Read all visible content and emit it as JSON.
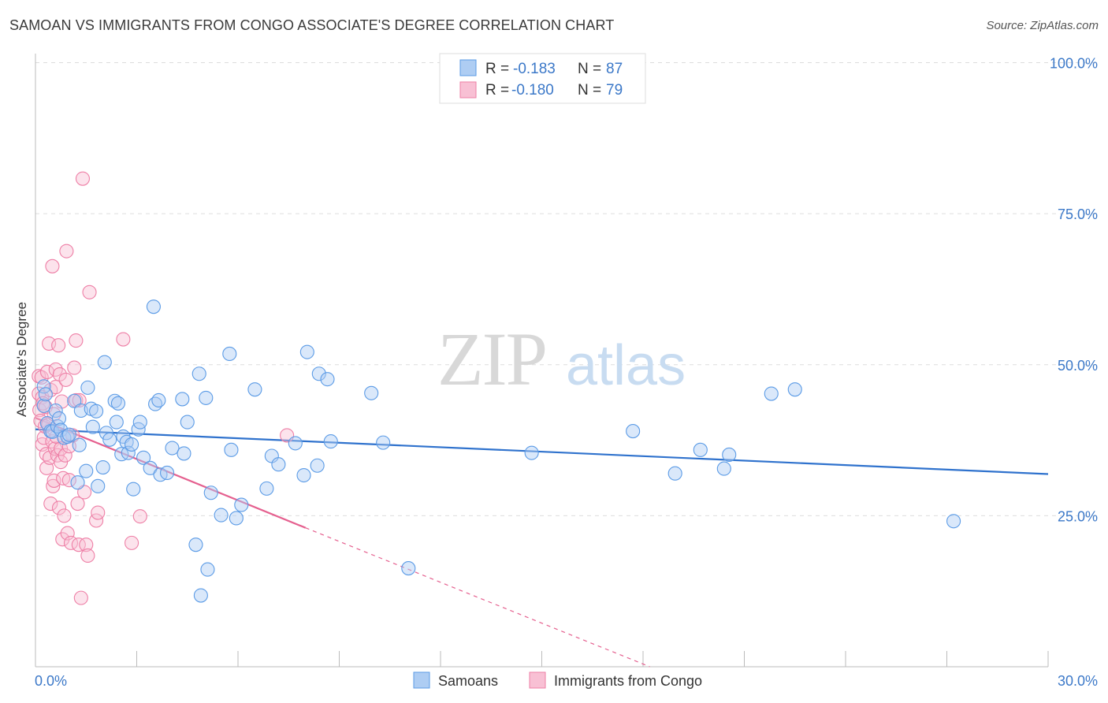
{
  "header": {
    "title": "SAMOAN VS IMMIGRANTS FROM CONGO ASSOCIATE'S DEGREE CORRELATION CHART",
    "source": "Source: ZipAtlas.com"
  },
  "colors": {
    "samoans": "#5b9be6",
    "samoans_fill": "#aecdf3",
    "congo": "#ee7fa6",
    "congo_fill": "#f8c0d4",
    "samoans_line": "#2f72cd",
    "congo_line": "#e5608f",
    "grid": "#dddddd",
    "axis_text": "#3b78c8"
  },
  "watermark": {
    "zip": "ZIP",
    "atlas": "atlas"
  },
  "legend": {
    "r_label": "R =",
    "n_label": "N =",
    "rows": [
      {
        "r": "-0.183",
        "n": "87"
      },
      {
        "r": "-0.180",
        "n": "79"
      }
    ]
  },
  "chart_data": {
    "type": "scatter",
    "title": "SAMOAN VS IMMIGRANTS FROM CONGO ASSOCIATE'S DEGREE CORRELATION CHART",
    "xlabel": "",
    "ylabel": "Associate's Degree",
    "xlim": [
      0,
      30
    ],
    "ylim": [
      0,
      102
    ],
    "x_tick_labels": [
      "0.0%",
      "30.0%"
    ],
    "y_ticks": [
      25,
      50,
      75,
      100
    ],
    "y_tick_labels": [
      "25.0%",
      "50.0%",
      "75.0%",
      "100.0%"
    ],
    "grid": true,
    "legend_position": "top-center",
    "series": [
      {
        "name": "Samoans",
        "r": -0.183,
        "n": 87,
        "trend": {
          "x": [
            0,
            30
          ],
          "y": [
            39.3,
            31.9
          ]
        },
        "points": [
          [
            0.25,
            46.4
          ],
          [
            0.25,
            43.2
          ],
          [
            0.3,
            45.1
          ],
          [
            0.35,
            40.3
          ],
          [
            0.45,
            39.0
          ],
          [
            0.5,
            38.9
          ],
          [
            0.6,
            42.4
          ],
          [
            0.65,
            39.8
          ],
          [
            0.7,
            41.1
          ],
          [
            0.75,
            39.2
          ],
          [
            0.85,
            37.9
          ],
          [
            0.95,
            38.1
          ],
          [
            1.0,
            38.4
          ],
          [
            1.15,
            44.0
          ],
          [
            1.25,
            30.5
          ],
          [
            1.3,
            36.7
          ],
          [
            1.35,
            42.4
          ],
          [
            1.5,
            32.4
          ],
          [
            1.55,
            46.2
          ],
          [
            1.65,
            42.7
          ],
          [
            1.7,
            39.7
          ],
          [
            1.8,
            42.3
          ],
          [
            1.85,
            29.9
          ],
          [
            2.0,
            33.0
          ],
          [
            2.05,
            50.4
          ],
          [
            2.1,
            38.7
          ],
          [
            2.2,
            37.6
          ],
          [
            2.35,
            44.0
          ],
          [
            2.4,
            40.5
          ],
          [
            2.45,
            43.6
          ],
          [
            2.55,
            35.2
          ],
          [
            2.6,
            38.1
          ],
          [
            2.7,
            37.2
          ],
          [
            2.75,
            35.4
          ],
          [
            2.85,
            36.8
          ],
          [
            2.9,
            29.4
          ],
          [
            3.05,
            39.3
          ],
          [
            3.1,
            40.5
          ],
          [
            3.2,
            34.6
          ],
          [
            3.4,
            32.9
          ],
          [
            3.5,
            59.6
          ],
          [
            3.55,
            43.5
          ],
          [
            3.65,
            44.1
          ],
          [
            3.7,
            31.8
          ],
          [
            3.9,
            32.1
          ],
          [
            4.05,
            36.2
          ],
          [
            4.35,
            44.3
          ],
          [
            4.4,
            35.3
          ],
          [
            4.5,
            40.5
          ],
          [
            4.75,
            20.2
          ],
          [
            4.85,
            48.5
          ],
          [
            4.9,
            11.8
          ],
          [
            5.05,
            44.5
          ],
          [
            5.1,
            16.1
          ],
          [
            5.2,
            28.8
          ],
          [
            5.5,
            25.1
          ],
          [
            5.75,
            51.8
          ],
          [
            5.8,
            35.9
          ],
          [
            5.95,
            24.6
          ],
          [
            6.1,
            26.8
          ],
          [
            6.5,
            45.9
          ],
          [
            6.85,
            29.5
          ],
          [
            7.0,
            34.9
          ],
          [
            7.2,
            33.5
          ],
          [
            7.7,
            37.0
          ],
          [
            7.95,
            31.7
          ],
          [
            8.05,
            52.1
          ],
          [
            8.35,
            33.3
          ],
          [
            8.4,
            48.5
          ],
          [
            8.65,
            47.6
          ],
          [
            8.75,
            37.3
          ],
          [
            9.95,
            45.3
          ],
          [
            10.3,
            37.1
          ],
          [
            11.05,
            16.3
          ],
          [
            14.7,
            35.4
          ],
          [
            17.7,
            39.0
          ],
          [
            18.95,
            32.0
          ],
          [
            19.7,
            35.9
          ],
          [
            20.4,
            32.8
          ],
          [
            20.55,
            35.1
          ],
          [
            21.8,
            45.2
          ],
          [
            22.5,
            45.9
          ],
          [
            27.2,
            24.1
          ]
        ]
      },
      {
        "name": "Immigrants from Congo",
        "r": -0.18,
        "n": 79,
        "trend": {
          "x": [
            0,
            8
          ],
          "y": [
            41.2,
            23.0
          ]
        },
        "trend_extension": {
          "x": [
            8,
            18.2
          ],
          "y": [
            23.0,
            0.0
          ]
        },
        "points": [
          [
            0.1,
            48.1
          ],
          [
            0.1,
            45.2
          ],
          [
            0.12,
            42.5
          ],
          [
            0.15,
            40.7
          ],
          [
            0.18,
            47.9
          ],
          [
            0.2,
            36.8
          ],
          [
            0.2,
            44.6
          ],
          [
            0.22,
            43.6
          ],
          [
            0.25,
            37.9
          ],
          [
            0.28,
            39.8
          ],
          [
            0.3,
            43.0
          ],
          [
            0.32,
            35.2
          ],
          [
            0.33,
            32.9
          ],
          [
            0.35,
            48.8
          ],
          [
            0.38,
            40.1
          ],
          [
            0.4,
            53.5
          ],
          [
            0.42,
            34.6
          ],
          [
            0.45,
            45.8
          ],
          [
            0.45,
            27.0
          ],
          [
            0.5,
            66.3
          ],
          [
            0.5,
            37.3
          ],
          [
            0.52,
            29.9
          ],
          [
            0.55,
            30.8
          ],
          [
            0.55,
            41.8
          ],
          [
            0.58,
            36.1
          ],
          [
            0.6,
            46.3
          ],
          [
            0.6,
            49.2
          ],
          [
            0.62,
            38.1
          ],
          [
            0.65,
            35.0
          ],
          [
            0.68,
            53.2
          ],
          [
            0.7,
            26.3
          ],
          [
            0.72,
            48.4
          ],
          [
            0.75,
            36.1
          ],
          [
            0.75,
            33.9
          ],
          [
            0.78,
            43.9
          ],
          [
            0.8,
            21.1
          ],
          [
            0.82,
            31.2
          ],
          [
            0.85,
            25.0
          ],
          [
            0.88,
            35.0
          ],
          [
            0.9,
            47.5
          ],
          [
            0.92,
            68.8
          ],
          [
            0.95,
            22.1
          ],
          [
            1.0,
            36.5
          ],
          [
            1.0,
            30.9
          ],
          [
            1.05,
            20.5
          ],
          [
            1.1,
            38.3
          ],
          [
            1.15,
            49.5
          ],
          [
            1.2,
            54.0
          ],
          [
            1.2,
            44.1
          ],
          [
            1.25,
            27.0
          ],
          [
            1.28,
            20.2
          ],
          [
            1.3,
            44.1
          ],
          [
            1.35,
            11.4
          ],
          [
            1.4,
            80.8
          ],
          [
            1.45,
            28.9
          ],
          [
            1.5,
            20.2
          ],
          [
            1.55,
            18.4
          ],
          [
            1.6,
            62.0
          ],
          [
            1.8,
            24.2
          ],
          [
            1.85,
            25.5
          ],
          [
            2.6,
            54.2
          ],
          [
            2.85,
            20.5
          ],
          [
            3.1,
            24.9
          ],
          [
            7.45,
            38.3
          ]
        ]
      }
    ]
  },
  "bottom_legend": {
    "items": [
      {
        "label": "Samoans"
      },
      {
        "label": "Immigrants from Congo"
      }
    ]
  }
}
